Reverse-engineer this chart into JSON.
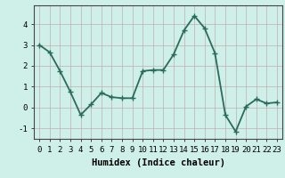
{
  "x": [
    0,
    1,
    2,
    3,
    4,
    5,
    6,
    7,
    8,
    9,
    10,
    11,
    12,
    13,
    14,
    15,
    16,
    17,
    18,
    19,
    20,
    21,
    22,
    23
  ],
  "y": [
    3.0,
    2.65,
    1.75,
    0.75,
    -0.35,
    0.15,
    0.7,
    0.5,
    0.45,
    0.45,
    1.75,
    1.8,
    1.8,
    2.55,
    3.7,
    4.4,
    3.8,
    2.6,
    -0.35,
    -1.15,
    0.05,
    0.4,
    0.2,
    0.25
  ],
  "xlabel": "Humidex (Indice chaleur)",
  "ylim": [
    -1.5,
    4.9
  ],
  "xlim": [
    -0.5,
    23.5
  ],
  "yticks": [
    -1,
    0,
    1,
    2,
    3,
    4
  ],
  "xticks": [
    0,
    1,
    2,
    3,
    4,
    5,
    6,
    7,
    8,
    9,
    10,
    11,
    12,
    13,
    14,
    15,
    16,
    17,
    18,
    19,
    20,
    21,
    22,
    23
  ],
  "line_color": "#2a6b5c",
  "marker": "+",
  "marker_size": 5,
  "line_width": 1.3,
  "bg_color": "#cef0e8",
  "grid_color": "#c0aeae",
  "tick_label_fontsize": 6.5,
  "xlabel_fontsize": 7.5
}
